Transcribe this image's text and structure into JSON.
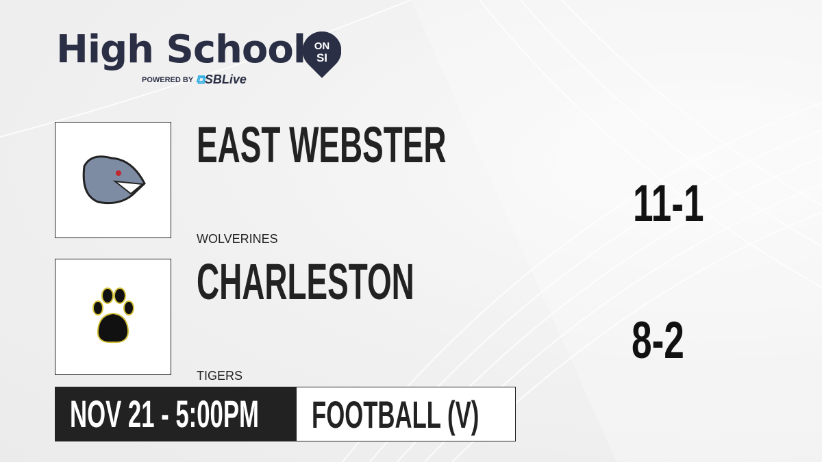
{
  "brand": {
    "title": "High School",
    "badge_top": "ON",
    "badge_bottom": "SI",
    "powered_by": "POWERED BY",
    "partner": "SBLive",
    "dark_color": "#2b2f45",
    "accent_color": "#29abe2"
  },
  "teams": [
    {
      "name": "EAST WEBSTER",
      "mascot": "WOLVERINES",
      "record": "11-1",
      "logo_icon": "wolverine-logo"
    },
    {
      "name": "CHARLESTON",
      "mascot": "TIGERS",
      "record": "8-2",
      "logo_icon": "paw-logo"
    }
  ],
  "game": {
    "datetime": "NOV 21 - 5:00PM",
    "sport": "FOOTBALL (V)"
  }
}
